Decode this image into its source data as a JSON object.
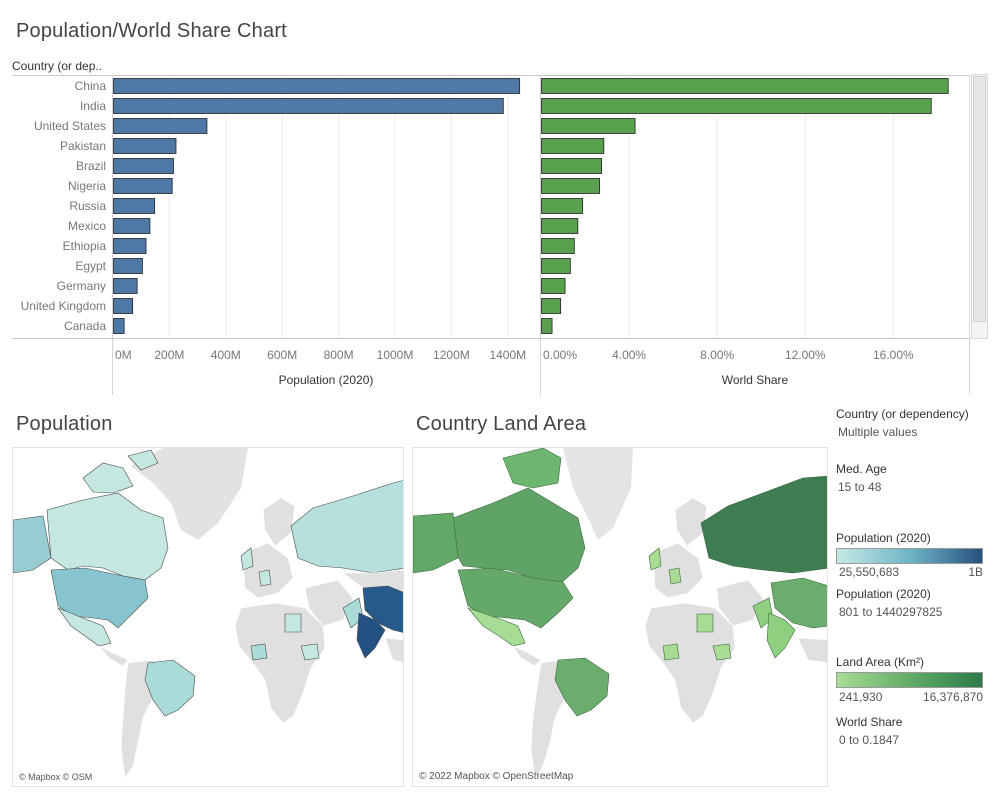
{
  "dashboard": {
    "title": "Population/World Share Chart",
    "row_header": "Country (or dep..",
    "pop_axis_title": "Population (2020)",
    "share_axis_title": "World Share"
  },
  "chart_data": [
    {
      "type": "bar",
      "orientation": "horizontal",
      "categories": [
        "China",
        "India",
        "United States",
        "Pakistan",
        "Brazil",
        "Nigeria",
        "Russia",
        "Mexico",
        "Ethiopia",
        "Egypt",
        "Germany",
        "United Kingdom",
        "Canada"
      ],
      "values": [
        1440297825,
        1382345085,
        331341050,
        221612785,
        212821986,
        208187595,
        145945524,
        129166028,
        115403027,
        102659126,
        83900471,
        67948282,
        37799407
      ],
      "xlabel": "Population (2020)",
      "xlim": [
        0,
        1500000000
      ],
      "ticks": [
        "0M",
        "200M",
        "400M",
        "600M",
        "800M",
        "1000M",
        "1200M",
        "1400M"
      ],
      "tick_values": [
        0,
        200000000,
        400000000,
        600000000,
        800000000,
        1000000000,
        1200000000,
        1400000000
      ],
      "color": "#4e79a7",
      "grid": true
    },
    {
      "type": "bar",
      "orientation": "horizontal",
      "categories": [
        "China",
        "India",
        "United States",
        "Pakistan",
        "Brazil",
        "Nigeria",
        "Russia",
        "Mexico",
        "Ethiopia",
        "Egypt",
        "Germany",
        "United Kingdom",
        "Canada"
      ],
      "values": [
        18.47,
        17.7,
        4.25,
        2.83,
        2.73,
        2.64,
        1.87,
        1.65,
        1.49,
        1.31,
        1.07,
        0.87,
        0.48
      ],
      "xlabel": "World Share",
      "xlim": [
        0,
        19.3
      ],
      "ticks": [
        "0.00%",
        "4.00%",
        "8.00%",
        "12.00%",
        "16.00%"
      ],
      "tick_values": [
        0,
        4,
        8,
        12,
        16
      ],
      "color": "#59a14f",
      "grid": true
    }
  ],
  "maps": {
    "population_title": "Population",
    "land_title": "Country Land Area",
    "population_credit": "© Mapbox © OSM",
    "land_credit": "© 2022 Mapbox © OpenStreetMap"
  },
  "filters": {
    "country_label": "Country (or dependency)",
    "country_value": "Multiple values",
    "age_label": "Med. Age",
    "age_value": "15 to 48",
    "pop_legend_label": "Population (2020)",
    "pop_legend_min": "25,550,683",
    "pop_legend_max": "1B",
    "pop_range_label": "Population (2020)",
    "pop_range_value": "801 to 1440297825",
    "land_legend_label": "Land Area (Km²)",
    "land_legend_min": "241,930",
    "land_legend_max": "16,376,870",
    "share_label": "World Share",
    "share_value": "0 to 0.1847"
  },
  "colors": {
    "pop_bar": "#4e79a7",
    "share_bar": "#59a14f",
    "pop_scale_low": "#c6e8e4",
    "pop_scale_high": "#26507f",
    "land_scale_low": "#a8dc93",
    "land_scale_high": "#2c7a48",
    "no_data_land": "#e0e0e0"
  }
}
